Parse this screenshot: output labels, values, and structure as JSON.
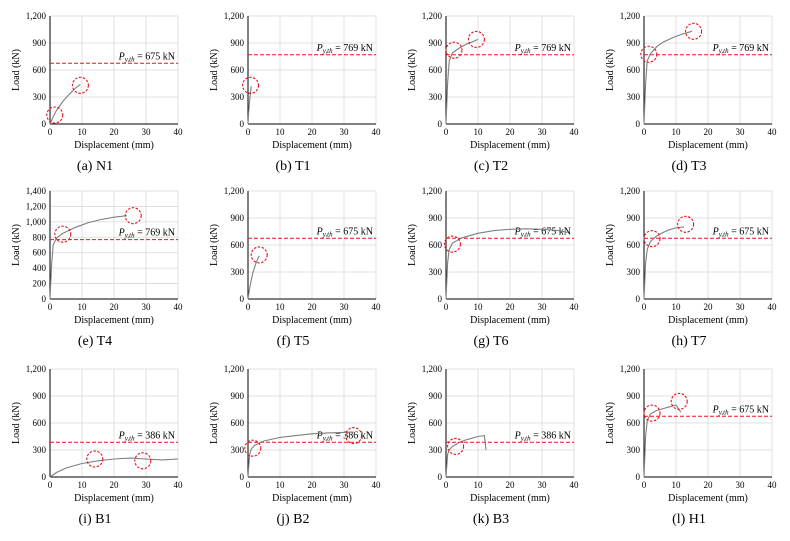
{
  "colors": {
    "curve": "#7f7f7f",
    "reference": "#e8141d",
    "circle": "#e8141d",
    "grid": "#d9d9d9",
    "axis": "#000000"
  },
  "chart_data": [
    {
      "type": "line",
      "caption": "(a) N1",
      "xlabel": "Displacement (mm)",
      "ylabel": "Load (kN)",
      "xlim": [
        0,
        40
      ],
      "ylim": [
        0,
        1200
      ],
      "xticks": [
        "0",
        "10",
        "20",
        "30",
        "40"
      ],
      "yticks": [
        "0",
        "300",
        "600",
        "900",
        "1,200"
      ],
      "grid": true,
      "series": [
        {
          "x": [
            0,
            0.5,
            1,
            2,
            4,
            6,
            8,
            9.5
          ],
          "y": [
            0,
            40,
            80,
            150,
            250,
            330,
            400,
            440
          ]
        }
      ],
      "reference": {
        "label": "P_y,th = 675 kN",
        "value": 675
      },
      "markers": [
        {
          "x": 1.5,
          "y": 100
        },
        {
          "x": 9.5,
          "y": 430
        }
      ]
    },
    {
      "type": "line",
      "caption": "(b) T1",
      "xlabel": "Displacement (mm)",
      "ylabel": "Load (kN)",
      "xlim": [
        0,
        40
      ],
      "ylim": [
        0,
        1200
      ],
      "xticks": [
        "0",
        "10",
        "20",
        "30",
        "40"
      ],
      "yticks": [
        "0",
        "300",
        "600",
        "900",
        "1,200"
      ],
      "grid": true,
      "series": [
        {
          "x": [
            0,
            0.2,
            0.5,
            0.8,
            1
          ],
          "y": [
            0,
            120,
            260,
            360,
            420
          ]
        }
      ],
      "reference": {
        "label": "P_y,th = 769 kN",
        "value": 769
      },
      "markers": [
        {
          "x": 0.8,
          "y": 430
        }
      ]
    },
    {
      "type": "line",
      "caption": "(c) T2",
      "xlabel": "Displacement (mm)",
      "ylabel": "Load (kN)",
      "xlim": [
        0,
        40
      ],
      "ylim": [
        0,
        1200
      ],
      "xticks": [
        "0",
        "10",
        "20",
        "30",
        "40"
      ],
      "yticks": [
        "0",
        "300",
        "600",
        "900",
        "1,200"
      ],
      "grid": true,
      "series": [
        {
          "x": [
            0,
            0.5,
            1,
            2,
            4,
            6,
            8,
            10
          ],
          "y": [
            0,
            450,
            700,
            790,
            840,
            880,
            910,
            940
          ]
        }
      ],
      "reference": {
        "label": "P_y,th = 769 kN",
        "value": 769
      },
      "markers": [
        {
          "x": 2.5,
          "y": 820
        },
        {
          "x": 9.5,
          "y": 940
        }
      ]
    },
    {
      "type": "line",
      "caption": "(d) T3",
      "xlabel": "Displacement (mm)",
      "ylabel": "Load (kN)",
      "xlim": [
        0,
        40
      ],
      "ylim": [
        0,
        1200
      ],
      "xticks": [
        "0",
        "10",
        "20",
        "30",
        "40"
      ],
      "yticks": [
        "0",
        "300",
        "600",
        "900",
        "1,200"
      ],
      "grid": true,
      "series": [
        {
          "x": [
            0,
            0.5,
            1,
            2,
            4,
            6,
            9,
            12,
            15
          ],
          "y": [
            0,
            450,
            700,
            780,
            860,
            910,
            960,
            1000,
            1030
          ]
        }
      ],
      "reference": {
        "label": "P_y,th = 769 kN",
        "value": 769
      },
      "markers": [
        {
          "x": 1.5,
          "y": 775
        },
        {
          "x": 15.5,
          "y": 1030
        }
      ]
    },
    {
      "type": "line",
      "caption": "(e) T4",
      "xlabel": "Displacement (mm)",
      "ylabel": "Load (kN)",
      "xlim": [
        0,
        40
      ],
      "ylim": [
        0,
        1400
      ],
      "xticks": [
        "0",
        "10",
        "20",
        "30",
        "40"
      ],
      "yticks": [
        "0",
        "200",
        "400",
        "600",
        "800",
        "1,000",
        "1,200",
        "1,400"
      ],
      "grid": true,
      "series": [
        {
          "x": [
            0,
            0.5,
            1,
            2,
            4,
            8,
            12,
            16,
            20,
            24
          ],
          "y": [
            0,
            450,
            700,
            790,
            850,
            930,
            990,
            1030,
            1060,
            1080
          ]
        }
      ],
      "reference": {
        "label": "P_y,th = 769 kN",
        "value": 769
      },
      "markers": [
        {
          "x": 4,
          "y": 840
        },
        {
          "x": 26,
          "y": 1080
        }
      ]
    },
    {
      "type": "line",
      "caption": "(f) T5",
      "xlabel": "Displacement (mm)",
      "ylabel": "Load (kN)",
      "xlim": [
        0,
        40
      ],
      "ylim": [
        0,
        1200
      ],
      "xticks": [
        "0",
        "10",
        "20",
        "30",
        "40"
      ],
      "yticks": [
        "0",
        "300",
        "600",
        "900",
        "1,200"
      ],
      "grid": true,
      "series": [
        {
          "x": [
            0,
            0.5,
            1.5,
            2.5,
            3.5
          ],
          "y": [
            0,
            120,
            290,
            400,
            480
          ]
        }
      ],
      "reference": {
        "label": "P_y,th = 675 kN",
        "value": 675
      },
      "markers": [
        {
          "x": 3.5,
          "y": 490
        }
      ]
    },
    {
      "type": "line",
      "caption": "(g) T6",
      "xlabel": "Displacement (mm)",
      "ylabel": "Load (kN)",
      "xlim": [
        0,
        40
      ],
      "ylim": [
        0,
        1200
      ],
      "xticks": [
        "0",
        "10",
        "20",
        "30",
        "40"
      ],
      "yticks": [
        "0",
        "300",
        "600",
        "900",
        "1,200"
      ],
      "grid": true,
      "series": [
        {
          "x": [
            0,
            0.5,
            1,
            2,
            5,
            10,
            15,
            20,
            25,
            30,
            35,
            38
          ],
          "y": [
            0,
            400,
            550,
            620,
            680,
            730,
            760,
            775,
            780,
            775,
            760,
            740
          ]
        }
      ],
      "reference": {
        "label": "P_y,th = 675 kN",
        "value": 675
      },
      "markers": [
        {
          "x": 2,
          "y": 610
        }
      ]
    },
    {
      "type": "line",
      "caption": "(h) T7",
      "xlabel": "Displacement (mm)",
      "ylabel": "Load (kN)",
      "xlim": [
        0,
        40
      ],
      "ylim": [
        0,
        1200
      ],
      "xticks": [
        "0",
        "10",
        "20",
        "30",
        "40"
      ],
      "yticks": [
        "0",
        "300",
        "600",
        "900",
        "1,200"
      ],
      "grid": true,
      "series": [
        {
          "x": [
            0,
            0.5,
            1,
            2,
            4,
            6,
            8,
            10,
            12.5
          ],
          "y": [
            0,
            400,
            550,
            640,
            700,
            740,
            770,
            790,
            800
          ]
        }
      ],
      "reference": {
        "label": "P_y,th = 675 kN",
        "value": 675
      },
      "markers": [
        {
          "x": 2.5,
          "y": 670
        },
        {
          "x": 13,
          "y": 830
        }
      ]
    },
    {
      "type": "line",
      "caption": "(i) B1",
      "xlabel": "Displacement (mm)",
      "ylabel": "Load (kN)",
      "xlim": [
        0,
        40
      ],
      "ylim": [
        0,
        1200
      ],
      "xticks": [
        "0",
        "10",
        "20",
        "30",
        "40"
      ],
      "yticks": [
        "0",
        "300",
        "600",
        "900",
        "1,200"
      ],
      "grid": true,
      "series": [
        {
          "x": [
            0,
            2,
            5,
            10,
            15,
            20,
            25,
            30,
            35,
            40
          ],
          "y": [
            0,
            50,
            100,
            150,
            180,
            200,
            210,
            200,
            190,
            200
          ]
        }
      ],
      "reference": {
        "label": "P_y,th = 386 kN",
        "value": 386
      },
      "markers": [
        {
          "x": 14,
          "y": 200
        },
        {
          "x": 29,
          "y": 180
        }
      ]
    },
    {
      "type": "line",
      "caption": "(j) B2",
      "xlabel": "Displacement (mm)",
      "ylabel": "Load (kN)",
      "xlim": [
        0,
        40
      ],
      "ylim": [
        0,
        1200
      ],
      "xticks": [
        "0",
        "10",
        "20",
        "30",
        "40"
      ],
      "yticks": [
        "0",
        "300",
        "600",
        "900",
        "1,200"
      ],
      "grid": true,
      "series": [
        {
          "x": [
            0,
            0.5,
            1,
            2,
            5,
            10,
            15,
            20,
            25,
            30,
            33
          ],
          "y": [
            0,
            250,
            310,
            350,
            400,
            440,
            460,
            480,
            490,
            495,
            500
          ]
        }
      ],
      "reference": {
        "label": "P_y,th = 386 kN",
        "value": 386
      },
      "markers": [
        {
          "x": 1.5,
          "y": 320
        },
        {
          "x": 33,
          "y": 460
        }
      ]
    },
    {
      "type": "line",
      "caption": "(k) B3",
      "xlabel": "Displacement (mm)",
      "ylabel": "Load (kN)",
      "xlim": [
        0,
        40
      ],
      "ylim": [
        0,
        1200
      ],
      "xticks": [
        "0",
        "10",
        "20",
        "30",
        "40"
      ],
      "yticks": [
        "0",
        "300",
        "600",
        "900",
        "1,200"
      ],
      "grid": true,
      "series": [
        {
          "x": [
            0,
            0.5,
            1,
            2,
            4,
            6,
            8,
            10,
            12,
            12.5
          ],
          "y": [
            0,
            250,
            300,
            340,
            380,
            410,
            430,
            450,
            460,
            300
          ]
        }
      ],
      "reference": {
        "label": "P_y,th = 386 kN",
        "value": 386
      },
      "markers": [
        {
          "x": 3,
          "y": 340
        }
      ]
    },
    {
      "type": "line",
      "caption": "(l) H1",
      "xlabel": "Displacement (mm)",
      "ylabel": "Load (kN)",
      "xlim": [
        0,
        40
      ],
      "ylim": [
        0,
        1200
      ],
      "xticks": [
        "0",
        "10",
        "20",
        "30",
        "40"
      ],
      "yticks": [
        "0",
        "300",
        "600",
        "900",
        "1,200"
      ],
      "grid": true,
      "series": [
        {
          "x": [
            0,
            0.5,
            1,
            2,
            4,
            6,
            8,
            10,
            11.5
          ],
          "y": [
            0,
            450,
            620,
            700,
            740,
            760,
            780,
            800,
            720
          ]
        }
      ],
      "reference": {
        "label": "P_y,th = 675 kN",
        "value": 675
      },
      "markers": [
        {
          "x": 2.5,
          "y": 710
        },
        {
          "x": 11,
          "y": 840
        }
      ]
    }
  ]
}
